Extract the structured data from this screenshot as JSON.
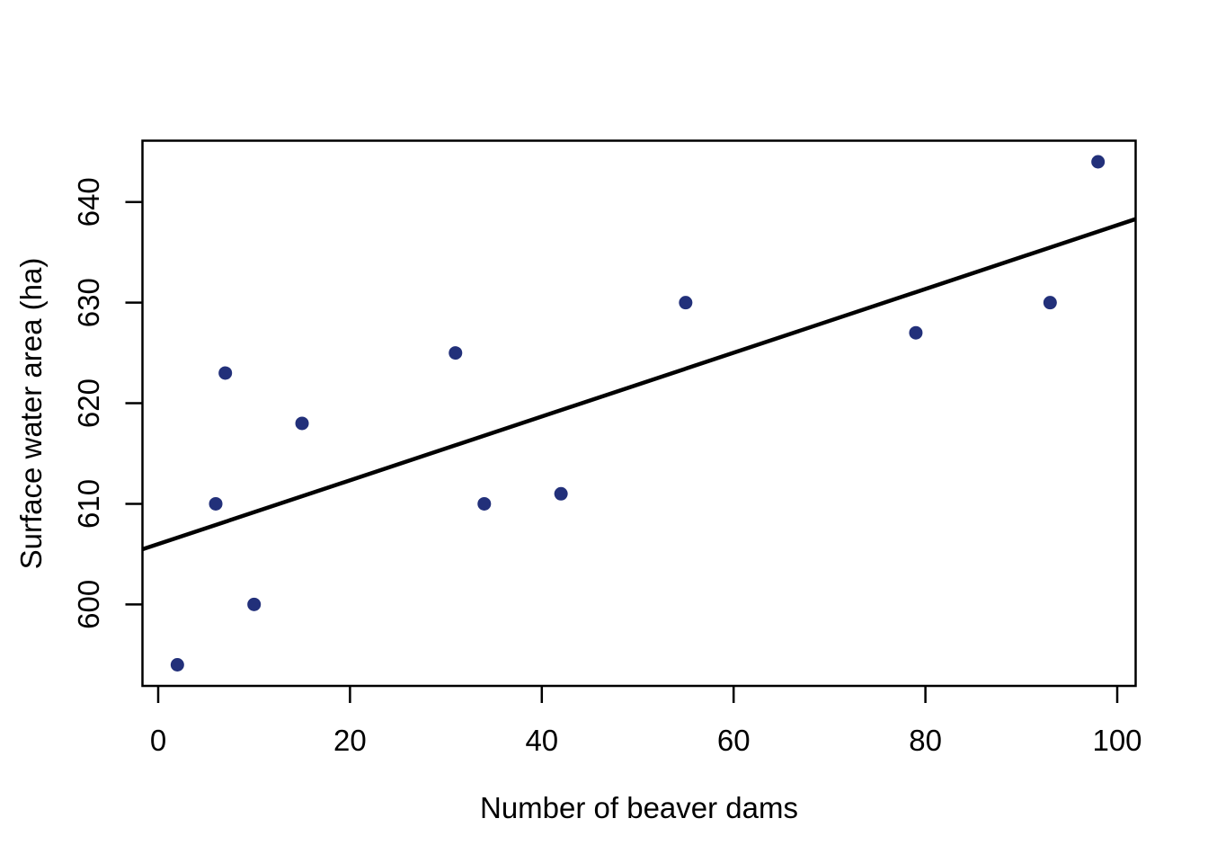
{
  "chart_data": {
    "type": "scatter",
    "title": "",
    "xlabel": "Number of beaver dams",
    "ylabel": "Surface water area (ha)",
    "x_ticks": [
      0,
      20,
      40,
      60,
      80,
      100
    ],
    "y_ticks": [
      600,
      610,
      620,
      630,
      640
    ],
    "xlim": [
      -1.64,
      101.92
    ],
    "ylim": [
      591.9,
      646.1
    ],
    "grid": false,
    "legend": "none",
    "points": [
      {
        "x": 2,
        "y": 594
      },
      {
        "x": 6,
        "y": 610
      },
      {
        "x": 7,
        "y": 623
      },
      {
        "x": 10,
        "y": 600
      },
      {
        "x": 15,
        "y": 618
      },
      {
        "x": 31,
        "y": 625
      },
      {
        "x": 34,
        "y": 610
      },
      {
        "x": 42,
        "y": 611
      },
      {
        "x": 55,
        "y": 630
      },
      {
        "x": 79,
        "y": 627
      },
      {
        "x": 93,
        "y": 630
      },
      {
        "x": 98,
        "y": 644
      }
    ],
    "regression_line": {
      "slope": 0.317,
      "intercept": 606.0
    },
    "point_color": "#22307A",
    "line_color": "#000000",
    "axis_color": "#000000"
  }
}
